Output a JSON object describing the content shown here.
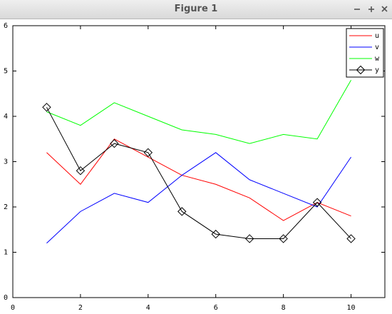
{
  "window": {
    "title": "Figure 1"
  },
  "chart_data": {
    "type": "line",
    "x": [
      1,
      2,
      3,
      4,
      5,
      6,
      7,
      8,
      9,
      10
    ],
    "series": [
      {
        "name": "u",
        "color": "#ff0000",
        "values": [
          3.2,
          2.5,
          3.5,
          3.1,
          2.7,
          2.5,
          2.2,
          1.7,
          2.1,
          1.8
        ]
      },
      {
        "name": "v",
        "color": "#0000ff",
        "values": [
          1.2,
          1.9,
          2.3,
          2.1,
          2.7,
          3.2,
          2.6,
          2.3,
          2.0,
          3.1
        ]
      },
      {
        "name": "w",
        "color": "#00ff00",
        "values": [
          4.1,
          3.8,
          4.3,
          4.0,
          3.7,
          3.6,
          3.4,
          3.6,
          3.5,
          4.8
        ]
      },
      {
        "name": "y",
        "color": "#000000",
        "marker": "diamond",
        "values": [
          4.2,
          2.8,
          3.4,
          3.2,
          1.9,
          1.4,
          1.3,
          1.3,
          2.1,
          1.3
        ]
      }
    ],
    "xlim": [
      0,
      11
    ],
    "xticks": [
      0,
      2,
      4,
      6,
      8,
      10
    ],
    "ylim": [
      0,
      6
    ],
    "yticks": [
      0,
      1,
      2,
      3,
      4,
      5,
      6
    ],
    "legend": "top-right"
  }
}
